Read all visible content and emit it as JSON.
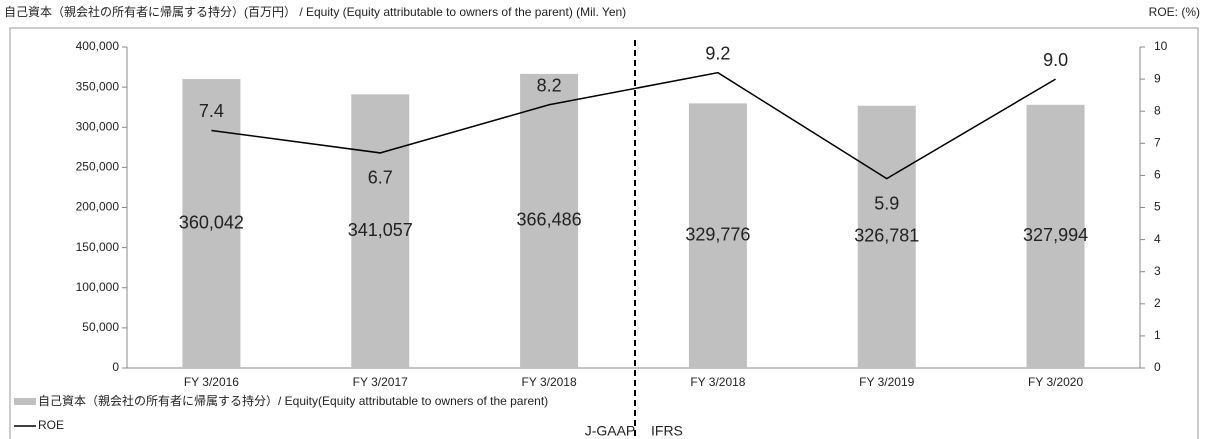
{
  "chart_data": {
    "type": "bar-line",
    "title": "自己資本（親会社の所有者に帰属する持分）(百万円） / Equity (Equity attributable to owners of the parent) (Mil. Yen)",
    "y2_axis_label": "ROE: (%)",
    "categories": [
      "FY 3/2016",
      "FY 3/2017",
      "FY 3/2018",
      "FY 3/2018",
      "FY 3/2019",
      "FY 3/2020"
    ],
    "series": [
      {
        "name": "自己資本（親会社の所有者に帰属する持分）/ Equity(Equity attributable to owners of the parent)",
        "type": "bar",
        "color": "#c0c0c0",
        "values": [
          360042,
          341057,
          366486,
          329776,
          326781,
          327994
        ],
        "value_labels": [
          "360,042",
          "341,057",
          "366,486",
          "329,776",
          "326,781",
          "327,994"
        ]
      },
      {
        "name": "ROE",
        "type": "line",
        "axis": "y2",
        "color": "#000000",
        "values": [
          7.4,
          6.7,
          8.2,
          9.2,
          5.9,
          9.0
        ],
        "value_labels": [
          "7.4",
          "6.7",
          "8.2",
          "9.2",
          "5.9",
          "9.0"
        ]
      }
    ],
    "ylim": [
      0,
      400000
    ],
    "yticks": [
      0,
      {
        "value": 50000,
        "label": "50,000"
      },
      {
        "value": 100000,
        "label": "100,000"
      },
      {
        "value": 150000,
        "label": "150,000"
      },
      {
        "value": 200000,
        "label": "200,000"
      },
      {
        "value": 250000,
        "label": "250,000"
      },
      {
        "value": 300000,
        "label": "300,000"
      },
      {
        "value": 350000,
        "label": "350,000"
      },
      {
        "value": 400000,
        "label": "400,000"
      }
    ],
    "y2lim": [
      0,
      10
    ],
    "y2ticks": [
      0,
      1,
      2,
      3,
      4,
      5,
      6,
      7,
      8,
      9,
      10
    ],
    "annotations": [
      "J-GAAP",
      "IFRS"
    ],
    "grid": false
  }
}
